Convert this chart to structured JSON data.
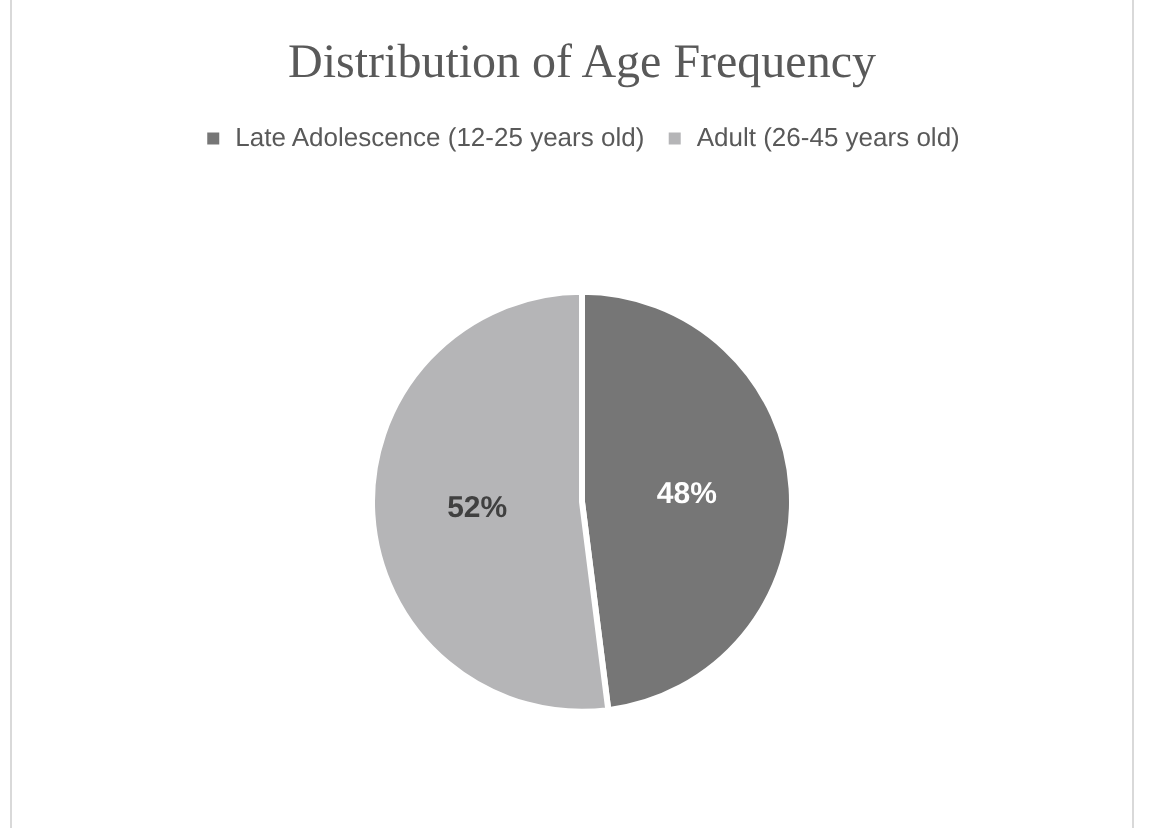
{
  "chart_data": {
    "type": "pie",
    "title": "Distribution of Age Frequency",
    "categories": [
      "Late Adolescence (12-25 years old)",
      "Adult (26-45 years old)"
    ],
    "values": [
      48,
      52
    ],
    "colors": [
      "#767676",
      "#b5b5b7"
    ],
    "value_labels": [
      "48%",
      "52%"
    ],
    "legend": "top"
  }
}
